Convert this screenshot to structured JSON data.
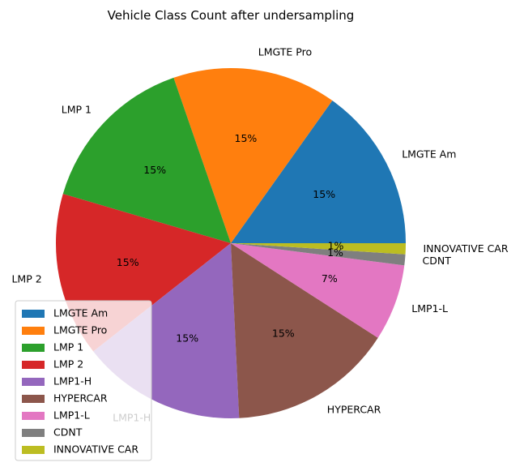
{
  "chart_data": {
    "type": "pie",
    "title": "Vehicle Class Count after undersampling",
    "labels": [
      "LMGTE Am",
      "LMGTE Pro",
      "LMP 1",
      "LMP 2",
      "LMP1-H",
      "HYPERCAR",
      "LMP1-L",
      "CDNT",
      "INNOVATIVE CAR"
    ],
    "values": [
      15,
      15,
      15,
      15,
      15,
      15,
      7,
      1,
      1
    ],
    "percent_labels": [
      "15%",
      "15%",
      "15%",
      "15%",
      "15%",
      "15%",
      "7%",
      "1%",
      "1%"
    ],
    "colors": [
      "#1f77b4",
      "#ff7f0e",
      "#2ca02c",
      "#d62728",
      "#9467bd",
      "#8c564b",
      "#e377c2",
      "#7f7f7f",
      "#bcbd22"
    ],
    "start_angle": 0,
    "direction": "counterclockwise",
    "legend": {
      "placement": "lower-left",
      "entries": [
        "LMGTE Am",
        "LMGTE Pro",
        "LMP 1",
        "LMP 2",
        "LMP1-H",
        "HYPERCAR",
        "LMP1-L",
        "CDNT",
        "INNOVATIVE CAR"
      ]
    }
  }
}
